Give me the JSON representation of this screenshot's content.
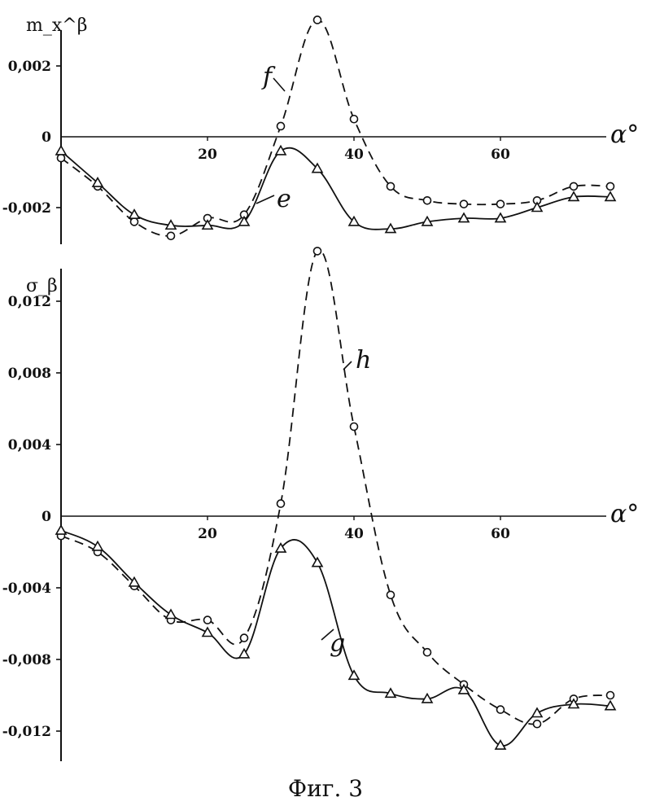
{
  "caption": "Фиг. 3",
  "chart_data": [
    {
      "type": "line",
      "ylabel": "m_x^β",
      "xlabel": "α°",
      "xlim": [
        0,
        75
      ],
      "ylim": [
        -0.003,
        0.0035
      ],
      "x_ticks": [
        "20",
        "40",
        "60"
      ],
      "y_ticks": [
        "0,002",
        "0",
        "-0,002"
      ],
      "series": [
        {
          "name": "f",
          "style": "dashed",
          "marker": "circle",
          "x": [
            0,
            5,
            10,
            15,
            20,
            25,
            30,
            35,
            40,
            45,
            50,
            55,
            60,
            65,
            70,
            75
          ],
          "y": [
            -0.0006,
            -0.0014,
            -0.0024,
            -0.0028,
            -0.0023,
            -0.0022,
            0.0003,
            0.0033,
            0.0005,
            -0.0014,
            -0.0018,
            -0.0019,
            -0.0019,
            -0.0018,
            -0.0014,
            -0.0014
          ]
        },
        {
          "name": "e",
          "style": "solid",
          "marker": "triangle",
          "x": [
            0,
            5,
            10,
            15,
            20,
            25,
            30,
            35,
            40,
            45,
            50,
            55,
            60,
            65,
            70,
            75
          ],
          "y": [
            -0.0004,
            -0.0013,
            -0.0022,
            -0.0025,
            -0.0025,
            -0.0024,
            -0.0004,
            -0.0009,
            -0.0024,
            -0.0026,
            -0.0024,
            -0.0023,
            -0.0023,
            -0.002,
            -0.0017,
            -0.0017
          ]
        }
      ]
    },
    {
      "type": "line",
      "ylabel": "σ_β",
      "xlabel": "α°",
      "xlim": [
        0,
        75
      ],
      "ylim": [
        -0.0135,
        0.0148
      ],
      "x_ticks": [
        "20",
        "40",
        "60"
      ],
      "y_ticks": [
        "0,012",
        "0,008",
        "0,004",
        "0",
        "-0,004",
        "-0,008",
        "-0,012"
      ],
      "series": [
        {
          "name": "h",
          "style": "dashed",
          "marker": "circle",
          "x": [
            0,
            5,
            10,
            15,
            20,
            25,
            30,
            35,
            40,
            45,
            50,
            55,
            60,
            65,
            70,
            75
          ],
          "y": [
            -0.0011,
            -0.002,
            -0.0039,
            -0.0058,
            -0.0058,
            -0.0068,
            0.0007,
            0.0148,
            0.005,
            -0.0044,
            -0.0076,
            -0.0094,
            -0.0108,
            -0.0116,
            -0.0102,
            -0.01
          ]
        },
        {
          "name": "g",
          "style": "solid",
          "marker": "triangle",
          "x": [
            0,
            5,
            10,
            15,
            20,
            25,
            30,
            35,
            40,
            45,
            50,
            55,
            60,
            65,
            70,
            75
          ],
          "y": [
            -0.0008,
            -0.0017,
            -0.0037,
            -0.0055,
            -0.0065,
            -0.0077,
            -0.0018,
            -0.0026,
            -0.0089,
            -0.0099,
            -0.0102,
            -0.0097,
            -0.0128,
            -0.011,
            -0.0105,
            -0.0106
          ]
        }
      ]
    }
  ]
}
